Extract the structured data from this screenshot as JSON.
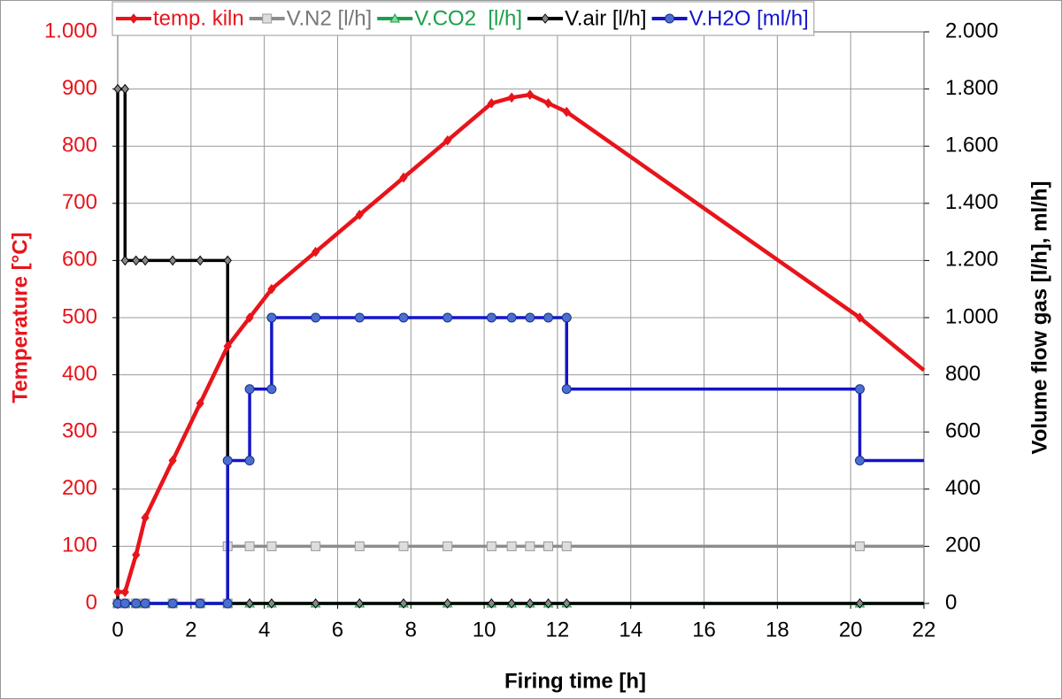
{
  "chart_data": {
    "type": "line",
    "xlabel": "Firing time [h]",
    "ylabel": "Temperature [°C]",
    "y2label": "Volume flow gas [l/h], ml/h]",
    "xlim": [
      0,
      22
    ],
    "xticks": [
      0,
      2,
      4,
      6,
      8,
      10,
      12,
      14,
      16,
      18,
      20,
      22
    ],
    "ylim": [
      0,
      1000
    ],
    "yticks": [
      0,
      100,
      200,
      300,
      400,
      500,
      600,
      700,
      800,
      900,
      {
        "value": 1000,
        "label": "1.000"
      }
    ],
    "y2lim": [
      0,
      2000
    ],
    "y2ticks": [
      0,
      200,
      400,
      600,
      800,
      {
        "value": 1000,
        "label": "1.000"
      },
      {
        "value": 1200,
        "label": "1.200"
      },
      {
        "value": 1400,
        "label": "1.400"
      },
      {
        "value": 1600,
        "label": "1.600"
      },
      {
        "value": 1800,
        "label": "1.800"
      },
      {
        "value": 2000,
        "label": "2.000"
      }
    ],
    "grid": true,
    "legend": "top",
    "ylabel_color": "#e8141b",
    "series": [
      {
        "name": "temp. kiln",
        "color": "#e8141b",
        "marker": "diamond",
        "axis": "y",
        "x": [
          0,
          0.2,
          0.5,
          0.75,
          1.5,
          2.25,
          3,
          3.6,
          4.2,
          5.4,
          6.6,
          7.8,
          9,
          10.2,
          10.75,
          11.25,
          11.75,
          12.25,
          20.25,
          22
        ],
        "values": [
          20,
          20,
          85,
          150,
          250,
          350,
          450,
          500,
          550,
          615,
          680,
          745,
          810,
          875,
          885,
          890,
          875,
          860,
          500,
          408
        ]
      },
      {
        "name": "V.N2 [l/h]",
        "color": "#8c8c8c",
        "marker": "square",
        "axis": "y2",
        "x": [
          0,
          0.2,
          0.5,
          0.75,
          1.5,
          2.25,
          3,
          3,
          3.6,
          4.2,
          5.4,
          6.6,
          7.8,
          9,
          10.2,
          10.75,
          11.25,
          11.75,
          12.25,
          20.25,
          22
        ],
        "values": [
          0,
          0,
          0,
          0,
          0,
          0,
          0,
          200,
          200,
          200,
          200,
          200,
          200,
          200,
          200,
          200,
          200,
          200,
          200,
          200,
          200
        ]
      },
      {
        "name": "V.CO2  [l/h]",
        "color": "#1aa04a",
        "marker": "triangle",
        "axis": "y2",
        "x": [
          0,
          0.2,
          0.5,
          0.75,
          1.5,
          2.25,
          3,
          3.6,
          4.2,
          5.4,
          6.6,
          7.8,
          9,
          10.2,
          10.75,
          11.25,
          11.75,
          12.25,
          20.25,
          22
        ],
        "values": [
          0,
          0,
          0,
          0,
          0,
          0,
          0,
          0,
          0,
          0,
          0,
          0,
          0,
          0,
          0,
          0,
          0,
          0,
          0,
          0
        ]
      },
      {
        "name": "V.air [l/h]",
        "color": "#000000",
        "marker": "diamond",
        "axis": "y2",
        "x": [
          0,
          0,
          0.2,
          0.2,
          0.5,
          0.75,
          1.5,
          2.25,
          3,
          3,
          3.6,
          4.2,
          5.4,
          6.6,
          7.8,
          9,
          10.2,
          10.75,
          11.25,
          11.75,
          12.25,
          20.25,
          22
        ],
        "values": [
          0,
          1800,
          1800,
          1200,
          1200,
          1200,
          1200,
          1200,
          1200,
          0,
          0,
          0,
          0,
          0,
          0,
          0,
          0,
          0,
          0,
          0,
          0,
          0,
          0
        ]
      },
      {
        "name": "V.H2O [ml/h]",
        "color": "#1414cc",
        "marker": "circle",
        "axis": "y2",
        "x": [
          0,
          0.2,
          0.5,
          0.75,
          1.5,
          2.25,
          3,
          3,
          3.6,
          3.6,
          4.2,
          4.2,
          5.4,
          6.6,
          7.8,
          9,
          10.2,
          10.75,
          11.25,
          11.75,
          12.25,
          12.25,
          20.25,
          20.25,
          22
        ],
        "values": [
          0,
          0,
          0,
          0,
          0,
          0,
          0,
          500,
          500,
          750,
          750,
          1000,
          1000,
          1000,
          1000,
          1000,
          1000,
          1000,
          1000,
          1000,
          1000,
          750,
          750,
          500,
          500
        ]
      }
    ]
  }
}
